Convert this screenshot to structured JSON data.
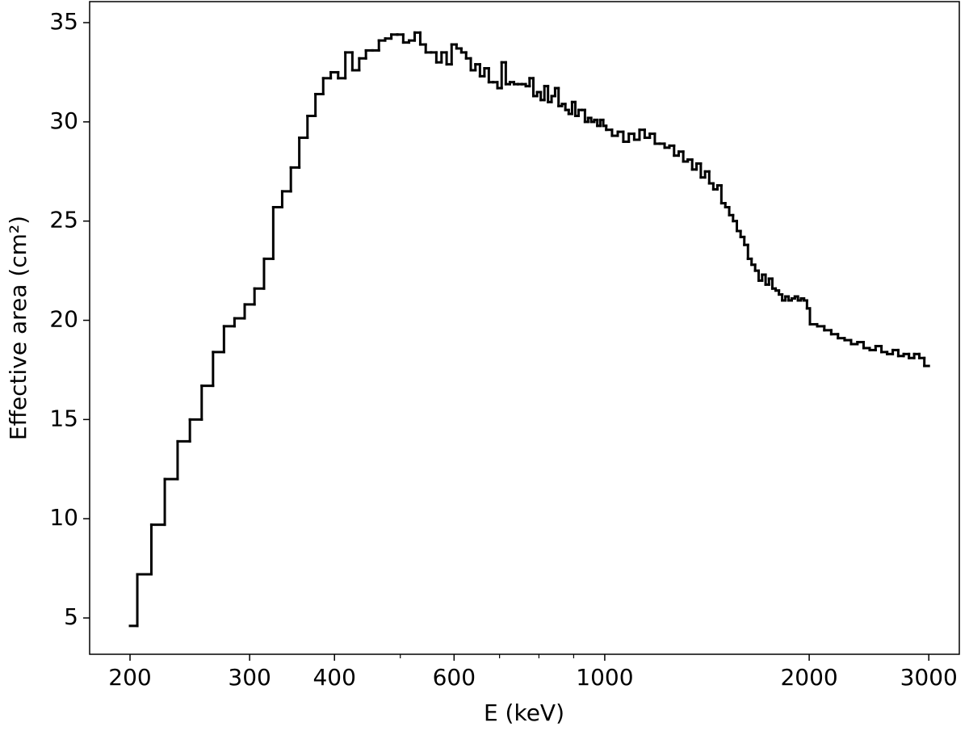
{
  "chart_data": {
    "type": "histogram",
    "xlabel": "E (keV)",
    "ylabel": "Effective area (cm²)",
    "xscale": "log",
    "color": "#000000",
    "xlim": [
      174.4,
      3327
    ],
    "ylim": [
      3.17,
      36.06
    ],
    "xticks": [
      200,
      300,
      400,
      600,
      1000,
      2000,
      3000
    ],
    "xminorticks": [
      500,
      700,
      800,
      900
    ],
    "yticks": [
      5,
      10,
      15,
      20,
      25,
      30,
      35
    ],
    "bins": [
      200,
      205,
      215,
      225,
      235,
      245,
      255,
      265,
      275,
      285,
      295,
      305,
      315,
      325,
      335,
      345,
      355,
      365,
      375,
      385,
      395,
      405,
      415,
      425,
      435,
      445,
      455,
      465,
      475,
      485,
      495,
      505,
      515,
      525,
      535,
      545,
      555,
      565,
      575,
      585,
      595,
      605,
      615,
      625,
      635,
      645,
      655,
      665,
      675,
      685,
      695,
      705,
      715,
      725,
      735,
      745,
      755,
      765,
      775,
      785,
      795,
      805,
      815,
      825,
      835,
      845,
      855,
      865,
      875,
      885,
      895,
      905,
      915,
      925,
      935,
      945,
      955,
      965,
      975,
      985,
      995,
      1005,
      1025,
      1045,
      1065,
      1085,
      1105,
      1125,
      1145,
      1165,
      1185,
      1205,
      1225,
      1245,
      1265,
      1285,
      1305,
      1325,
      1345,
      1365,
      1385,
      1405,
      1425,
      1445,
      1465,
      1485,
      1505,
      1525,
      1545,
      1565,
      1585,
      1605,
      1625,
      1645,
      1665,
      1685,
      1705,
      1725,
      1745,
      1765,
      1785,
      1805,
      1825,
      1845,
      1865,
      1885,
      1905,
      1925,
      1945,
      1965,
      1985,
      2005,
      2055,
      2105,
      2155,
      2205,
      2255,
      2305,
      2355,
      2405,
      2455,
      2505,
      2555,
      2605,
      2655,
      2705,
      2755,
      2805,
      2855,
      2905,
      2955,
      3000
    ],
    "values": [
      4.6,
      7.2,
      9.7,
      12.0,
      13.9,
      15.0,
      16.7,
      18.4,
      19.7,
      20.1,
      20.8,
      21.6,
      23.1,
      25.7,
      26.5,
      27.7,
      29.2,
      30.3,
      31.4,
      32.2,
      32.5,
      32.2,
      33.5,
      32.6,
      33.2,
      33.6,
      33.6,
      34.1,
      34.2,
      34.4,
      34.4,
      34.0,
      34.1,
      34.5,
      33.9,
      33.5,
      33.5,
      33.0,
      33.5,
      32.9,
      33.9,
      33.7,
      33.5,
      33.2,
      32.6,
      32.9,
      32.3,
      32.7,
      32.0,
      32.0,
      31.7,
      33.0,
      31.9,
      32.0,
      31.9,
      31.9,
      31.9,
      31.8,
      32.2,
      31.3,
      31.5,
      31.1,
      31.8,
      31.0,
      31.3,
      31.7,
      30.8,
      30.9,
      30.6,
      30.4,
      31.0,
      30.3,
      30.6,
      30.6,
      30.0,
      30.2,
      30.0,
      30.1,
      29.8,
      30.1,
      29.8,
      29.6,
      29.3,
      29.5,
      29.0,
      29.4,
      29.1,
      29.6,
      29.2,
      29.4,
      28.9,
      28.9,
      28.7,
      28.8,
      28.3,
      28.5,
      28.0,
      28.1,
      27.6,
      27.9,
      27.2,
      27.5,
      26.9,
      26.6,
      26.8,
      25.9,
      25.7,
      25.3,
      25.0,
      24.5,
      24.2,
      23.8,
      23.1,
      22.8,
      22.5,
      22.0,
      22.3,
      21.8,
      22.1,
      21.6,
      21.5,
      21.3,
      21.0,
      21.2,
      21.0,
      21.1,
      21.2,
      21.0,
      21.1,
      21.0,
      20.6,
      19.8,
      19.7,
      19.5,
      19.3,
      19.1,
      19.0,
      18.8,
      18.9,
      18.6,
      18.5,
      18.7,
      18.4,
      18.3,
      18.5,
      18.2,
      18.3,
      18.1,
      18.3,
      18.1,
      17.7
    ]
  }
}
